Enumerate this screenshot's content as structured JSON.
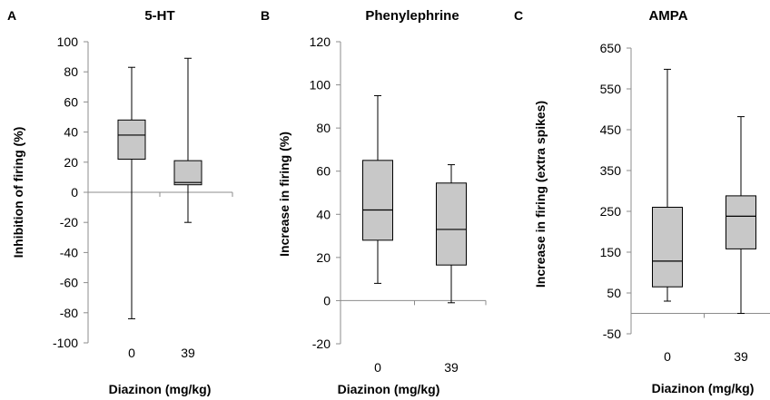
{
  "chart_data": [
    {
      "type": "box",
      "panel_letter": "A",
      "title": "5-HT",
      "xlabel": "Diazinon (mg/kg)",
      "ylabel": "Inhibition of firing (%)",
      "ylim": [
        -100,
        100
      ],
      "yticks": [
        -100,
        -80,
        -60,
        -40,
        -20,
        0,
        20,
        40,
        60,
        80,
        100
      ],
      "categories": [
        "0",
        "39"
      ],
      "boxes": [
        {
          "min": -84,
          "q1": 22,
          "median": 38,
          "q3": 48,
          "max": 83
        },
        {
          "min": -20,
          "q1": 5,
          "median": 6.5,
          "q3": 21,
          "max": 89
        }
      ]
    },
    {
      "type": "box",
      "panel_letter": "B",
      "title": "Phenylephrine",
      "xlabel": "Diazinon (mg/kg)",
      "ylabel": "Increase in firing (%)",
      "ylim": [
        -20,
        120
      ],
      "yticks": [
        -20,
        0,
        20,
        40,
        60,
        80,
        100,
        120
      ],
      "categories": [
        "0",
        "39"
      ],
      "boxes": [
        {
          "min": 8,
          "q1": 28,
          "median": 42,
          "q3": 65,
          "max": 95
        },
        {
          "min": -1,
          "q1": 16.5,
          "median": 33,
          "q3": 54.5,
          "max": 63
        }
      ]
    },
    {
      "type": "box",
      "panel_letter": "C",
      "title": "AMPA",
      "xlabel": "Diazinon (mg/kg)",
      "ylabel": "Increase in firing (extra spikes)",
      "ylim": [
        -50,
        650
      ],
      "yticks": [
        -50,
        50,
        150,
        250,
        350,
        450,
        550,
        650
      ],
      "categories": [
        "0",
        "39"
      ],
      "boxes": [
        {
          "min": 30,
          "q1": 65,
          "median": 128,
          "q3": 260,
          "max": 598
        },
        {
          "min": 0,
          "q1": 158,
          "median": 238,
          "q3": 288,
          "max": 482
        }
      ]
    }
  ]
}
